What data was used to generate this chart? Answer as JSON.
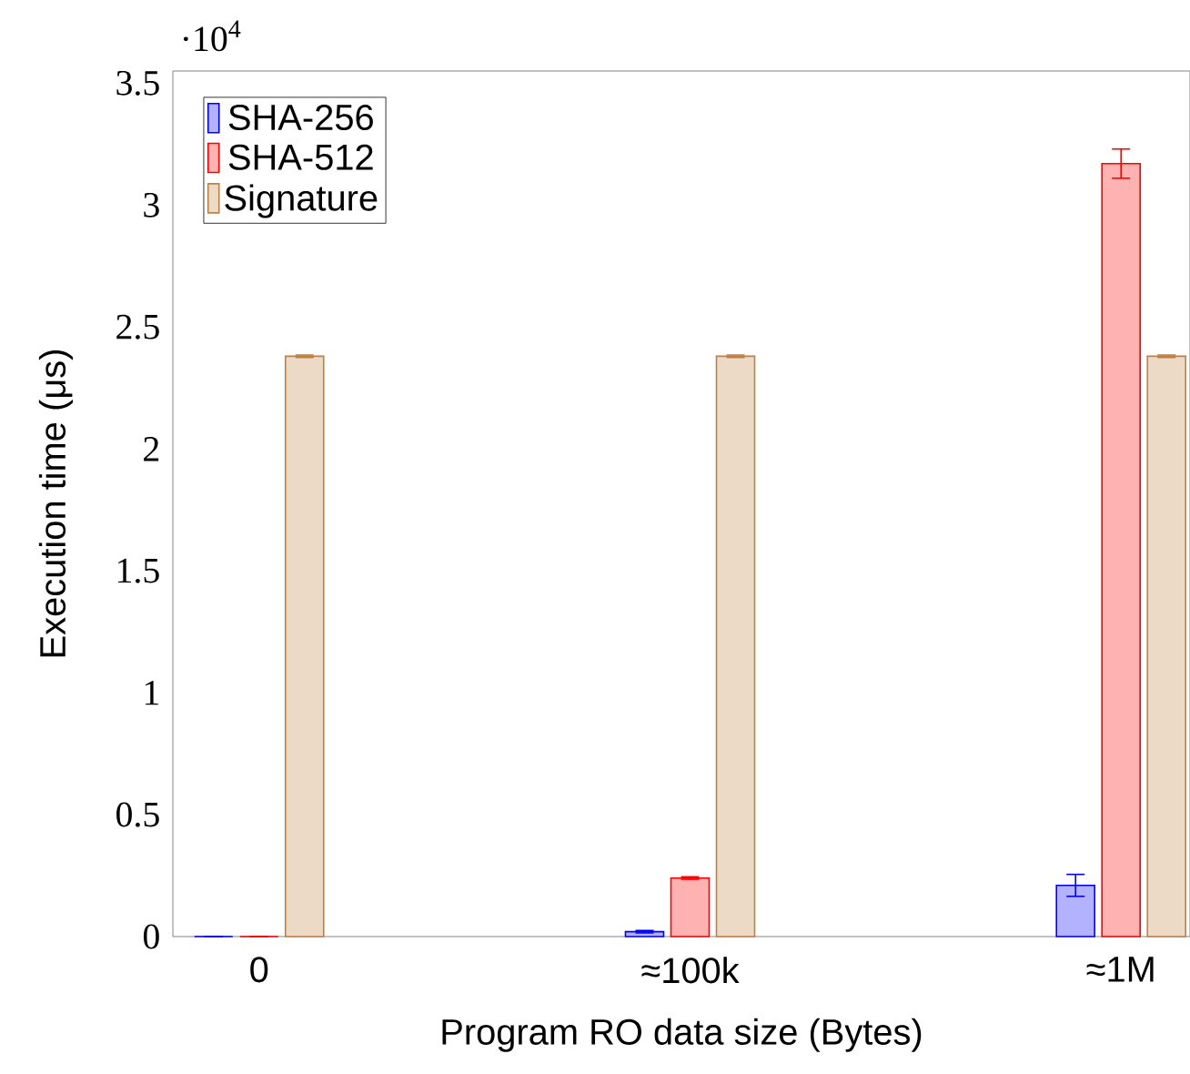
{
  "chart_data": {
    "type": "bar",
    "xlabel": "Program RO data size (Bytes)",
    "ylabel": "Execution time (μs)",
    "annotations": [
      "·10$^{4}$"
    ],
    "categories": [
      "0",
      "≈100k",
      "≈1M"
    ],
    "ylim": [
      0,
      3.55
    ],
    "yticks": [
      0,
      0.5,
      1,
      1.5,
      2,
      2.5,
      3,
      3.5
    ],
    "legend": "top left",
    "grid": false,
    "series": [
      {
        "name": "SHA-256",
        "color": "#0000ff",
        "values": [
          0,
          0.02,
          0.21
        ],
        "errors": [
          null,
          0.005,
          0.045
        ]
      },
      {
        "name": "SHA-512",
        "color": "#ff0000",
        "values": [
          0,
          0.24,
          3.17
        ],
        "errors": [
          null,
          0.005,
          0.06
        ]
      },
      {
        "name": "Signature",
        "color": "#bf8040",
        "values": [
          2.38,
          2.38,
          2.38
        ],
        "errors": [
          0.005,
          0.005,
          0.005
        ]
      }
    ]
  }
}
